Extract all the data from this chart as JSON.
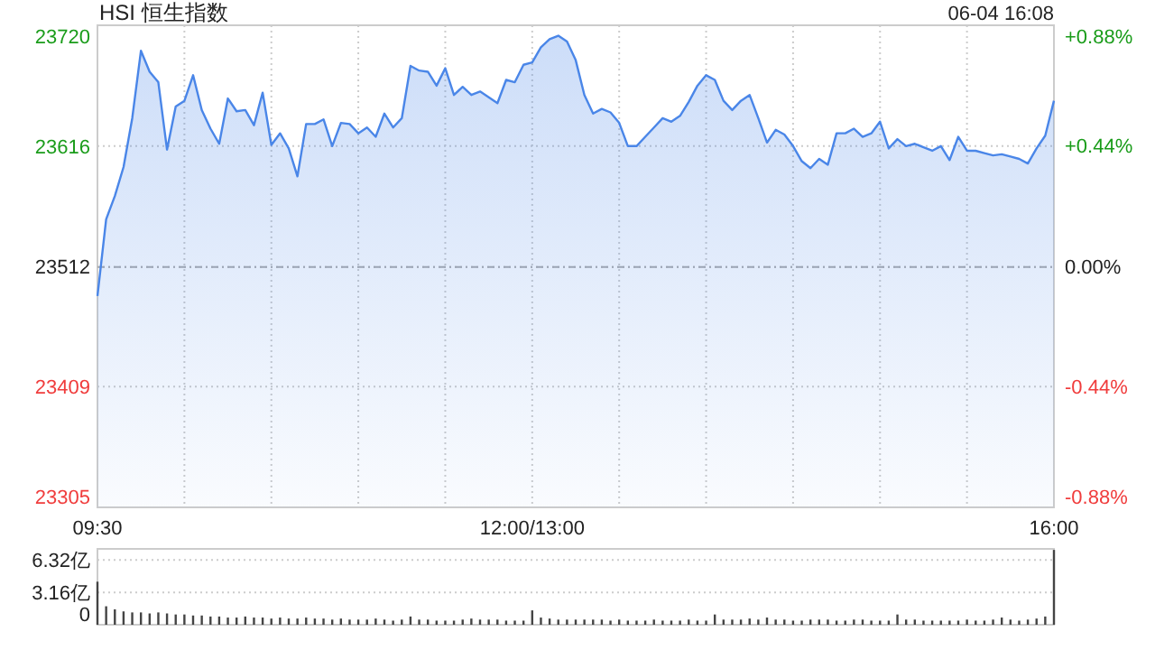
{
  "chart_data": [
    {
      "type": "area",
      "title": "HSI 恒生指数",
      "annotations": [
        "06-04 16:08"
      ],
      "color": "#4a86e8",
      "grid": true,
      "categories": [
        "09:30",
        null,
        null,
        null,
        null,
        null,
        null,
        null,
        null,
        null,
        null,
        null,
        null,
        null,
        null,
        null,
        null,
        null,
        null,
        null,
        null,
        null,
        null,
        null,
        null,
        null,
        null,
        null,
        null,
        null,
        null,
        null,
        null,
        null,
        null,
        null,
        null,
        null,
        null,
        null,
        null,
        null,
        null,
        null,
        null,
        null,
        null,
        null,
        null,
        null,
        "12:00/13:00",
        null,
        null,
        null,
        null,
        null,
        null,
        null,
        null,
        null,
        null,
        null,
        null,
        null,
        null,
        null,
        null,
        null,
        null,
        null,
        null,
        null,
        null,
        null,
        null,
        null,
        null,
        null,
        null,
        null,
        null,
        null,
        null,
        null,
        null,
        null,
        null,
        null,
        null,
        null,
        null,
        null,
        null,
        null,
        null,
        null,
        null,
        null,
        null,
        null,
        null,
        null,
        null,
        null,
        null,
        null,
        null,
        null,
        null,
        null,
        "16:00"
      ],
      "values": [
        23487,
        23553,
        23573,
        23598,
        23640,
        23698,
        23680,
        23671,
        23613,
        23650,
        23655,
        23677,
        23647,
        23631,
        23618,
        23657,
        23646,
        23647,
        23634,
        23662,
        23617,
        23627,
        23614,
        23590,
        23635,
        23635,
        23639,
        23616,
        23636,
        23635,
        23627,
        23632,
        23624,
        23644,
        23632,
        23640,
        23685,
        23681,
        23680,
        23668,
        23683,
        23660,
        23667,
        23660,
        23663,
        23658,
        23653,
        23673,
        23671,
        23686,
        23688,
        23701,
        23708,
        23711,
        23706,
        23690,
        23660,
        23644,
        23648,
        23645,
        23636,
        23616,
        23616,
        23624,
        23632,
        23640,
        23637,
        23642,
        23654,
        23668,
        23677,
        23673,
        23655,
        23647,
        23655,
        23660,
        23640,
        23619,
        23630,
        23626,
        23616,
        23603,
        23597,
        23605,
        23600,
        23627,
        23627,
        23631,
        23624,
        23627,
        23637,
        23614,
        23622,
        23616,
        23618,
        23615,
        23612,
        23616,
        23604,
        23624,
        23612,
        23612,
        23610,
        23608,
        23609,
        23607,
        23605,
        23601,
        23614,
        23625,
        23655
      ],
      "ylim": [
        23305,
        23720
      ],
      "yticks": [
        23305,
        23409,
        23512,
        23616,
        23720
      ],
      "y2lim": [
        -0.88,
        0.88
      ],
      "y2ticks": [
        {
          "value": -0.88,
          "label": "-0.88%"
        },
        {
          "value": -0.44,
          "label": "-0.44%"
        },
        {
          "value": 0,
          "label": "0.00%"
        },
        {
          "value": 0.44,
          "label": "+0.44%"
        },
        {
          "value": 0.88,
          "label": "+0.88%"
        }
      ],
      "ref_lines": [
        {
          "axis": "y",
          "value": 23512
        }
      ]
    },
    {
      "type": "bar",
      "color": "#444444",
      "grid": "y",
      "tick_labels": "y",
      "categories": [
        null,
        null,
        null,
        null,
        null,
        null,
        null,
        null,
        null,
        null,
        null,
        null,
        null,
        null,
        null,
        null,
        null,
        null,
        null,
        null,
        null,
        null,
        null,
        null,
        null,
        null,
        null,
        null,
        null,
        null,
        null,
        null,
        null,
        null,
        null,
        null,
        null,
        null,
        null,
        null,
        null,
        null,
        null,
        null,
        null,
        null,
        null,
        null,
        null,
        null,
        null,
        null,
        null,
        null,
        null,
        null,
        null,
        null,
        null,
        null,
        null,
        null,
        null,
        null,
        null,
        null,
        null,
        null,
        null,
        null,
        null,
        null,
        null,
        null,
        null,
        null,
        null,
        null,
        null,
        null,
        null,
        null,
        null,
        null,
        null,
        null,
        null,
        null,
        null,
        null,
        null,
        null,
        null,
        null,
        null,
        null,
        null,
        null,
        null,
        null,
        null,
        null,
        null,
        null,
        null,
        null,
        null,
        null,
        null,
        null,
        null
      ],
      "values": [
        4.2,
        1.8,
        1.5,
        1.3,
        1.2,
        1.2,
        1.1,
        1.2,
        1.1,
        1.0,
        1.0,
        0.9,
        0.9,
        0.8,
        0.8,
        0.7,
        0.7,
        0.8,
        0.7,
        0.7,
        0.6,
        0.7,
        0.6,
        0.6,
        0.7,
        0.6,
        0.6,
        0.5,
        0.6,
        0.5,
        0.5,
        0.5,
        0.6,
        0.5,
        0.4,
        0.5,
        0.8,
        0.5,
        0.5,
        0.4,
        0.4,
        0.4,
        0.5,
        0.6,
        0.5,
        0.5,
        0.5,
        0.4,
        0.4,
        0.4,
        1.4,
        0.7,
        0.6,
        0.5,
        0.5,
        0.5,
        0.5,
        0.5,
        0.5,
        0.4,
        0.5,
        0.4,
        0.4,
        0.4,
        0.5,
        0.4,
        0.4,
        0.4,
        0.5,
        0.4,
        0.4,
        1.0,
        0.5,
        0.5,
        0.5,
        0.6,
        0.5,
        0.7,
        0.5,
        0.5,
        0.4,
        0.4,
        0.5,
        0.5,
        0.5,
        0.4,
        0.4,
        0.5,
        0.5,
        0.4,
        0.4,
        0.4,
        1.0,
        0.5,
        0.5,
        0.4,
        0.4,
        0.4,
        0.4,
        0.4,
        0.5,
        0.4,
        0.4,
        0.5,
        0.7,
        0.5,
        0.4,
        0.5,
        0.6,
        0.8,
        7.3
      ],
      "ylim": [
        0,
        7.4
      ],
      "yticks": [
        0,
        {
          "value": 3.16,
          "label": "3.16亿"
        },
        {
          "value": 6.32,
          "label": "6.32亿"
        }
      ]
    }
  ]
}
